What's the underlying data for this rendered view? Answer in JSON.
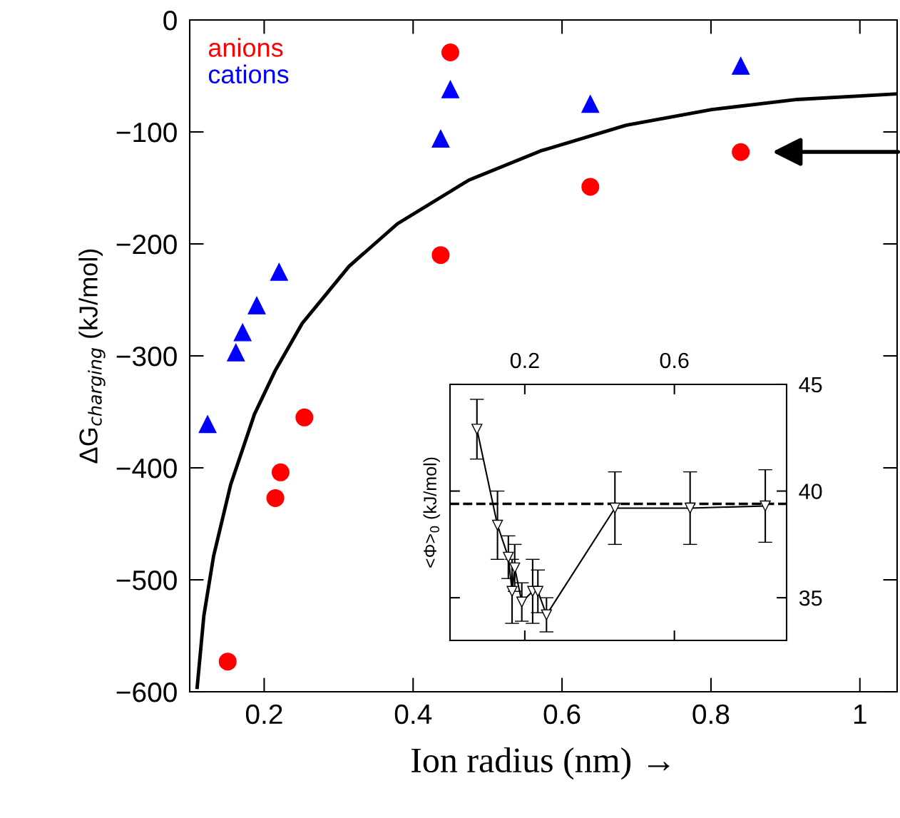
{
  "chart_data": [
    {
      "type": "scatter",
      "xlabel": "Ion radius (nm) →",
      "ylabel": "ΔG$_{charging}$ (kJ/mol)",
      "xlim": [
        0.1,
        1.05
      ],
      "ylim": [
        -600,
        0
      ],
      "xticks": [
        0.2,
        0.4,
        0.6,
        0.8,
        1
      ],
      "yticks": [
        0,
        {
          "value": -100,
          "label": "−100"
        },
        {
          "value": -200,
          "label": "−200"
        },
        {
          "value": -300,
          "label": "−300"
        },
        {
          "value": -400,
          "label": "−400"
        },
        {
          "value": -500,
          "label": "−500"
        },
        {
          "value": -600,
          "label": "−600"
        }
      ],
      "grid": false,
      "legend": "top left",
      "series": [
        {
          "name": "anions",
          "color": "#ff0000",
          "marker": "circle",
          "x": [
            0.151,
            0.215,
            0.222,
            0.254,
            0.437,
            0.45,
            0.638,
            0.84
          ],
          "values": [
            -573,
            -427,
            -404,
            -355,
            -210,
            -29,
            -149,
            -118
          ]
        },
        {
          "name": "cations",
          "color": "#0000ff",
          "marker": "triangle",
          "x": [
            0.124,
            0.162,
            0.171,
            0.19,
            0.22,
            0.437,
            0.45,
            0.638,
            0.84
          ],
          "values": [
            -361,
            -297,
            -279,
            -255,
            -225,
            -106,
            -62,
            -75,
            -41
          ]
        },
        {
          "type": "line",
          "color": "#000000",
          "marker": "none",
          "x": [
            0.11,
            0.119,
            0.132,
            0.155,
            0.187,
            0.215,
            0.251,
            0.314,
            0.379,
            0.475,
            0.571,
            0.686,
            0.801,
            0.916,
            1.05
          ],
          "values": [
            -596,
            -532,
            -479,
            -415,
            -352,
            -313,
            -271,
            -220,
            -182,
            -143,
            -117,
            -94,
            -80,
            -71,
            -66
          ]
        }
      ]
    },
    {
      "type": "line",
      "ylabel": "<Φ>$_{0}$ (kJ/mol)",
      "xlim": [
        0,
        0.9
      ],
      "ylim": [
        33,
        45
      ],
      "xticks": [
        0.2,
        0.6
      ],
      "yticks": [
        35,
        40,
        45
      ],
      "grid": false,
      "marker": "triangle",
      "line_style": "solid",
      "ref_lines": [
        {
          "axis": "y",
          "value": 39.4,
          "line_style": "dashed",
          "color": "#000000"
        }
      ],
      "series": [
        {
          "color": "#000000",
          "x": [
            0.072,
            0.127,
            0.156,
            0.166,
            0.173,
            0.192,
            0.221,
            0.235,
            0.258,
            0.441,
            0.642,
            0.843
          ],
          "values": [
            42.9,
            38.4,
            36.9,
            35.3,
            36.4,
            34.8,
            35.3,
            35.3,
            34.2,
            39.2,
            39.2,
            39.3
          ],
          "errors": [
            1.4,
            1.6,
            1.0,
            1.5,
            1.1,
            0.9,
            1.5,
            1.0,
            0.8,
            1.7,
            1.7,
            1.7
          ]
        }
      ]
    }
  ]
}
